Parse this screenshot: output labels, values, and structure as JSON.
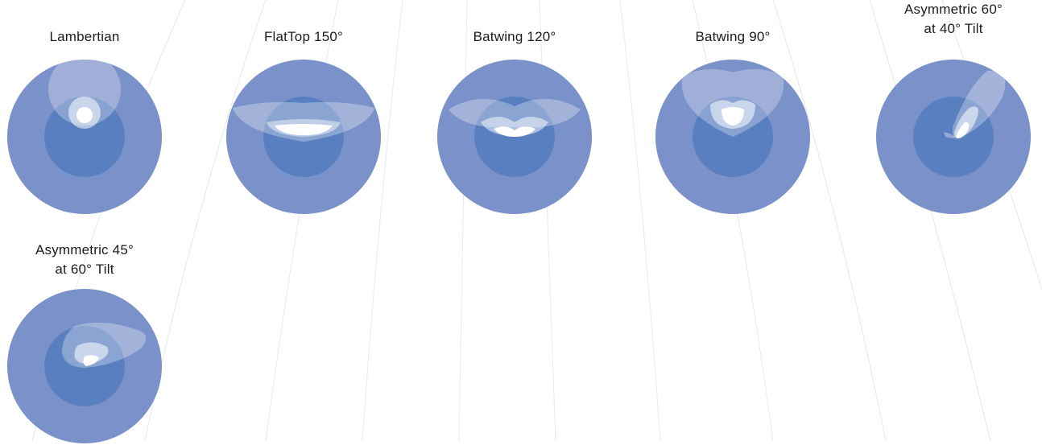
{
  "diagrams": [
    {
      "id": "lambertian",
      "label": "Lambertian"
    },
    {
      "id": "flattop-150",
      "label": "FlatTop 150°"
    },
    {
      "id": "batwing-120",
      "label": "Batwing 120°"
    },
    {
      "id": "batwing-90",
      "label": "Batwing 90°"
    },
    {
      "id": "asym-60-40",
      "label": "Asymmetric 60°\nat 40° Tilt"
    },
    {
      "id": "asym-45-60",
      "label": "Asymmetric 45°\nat 60° Tilt"
    }
  ],
  "colors": {
    "outer_disc": "#7a91c9",
    "inner_disc": "#5a7fc0",
    "beam_light": "#ffffff",
    "label": "#1c1c1c"
  }
}
